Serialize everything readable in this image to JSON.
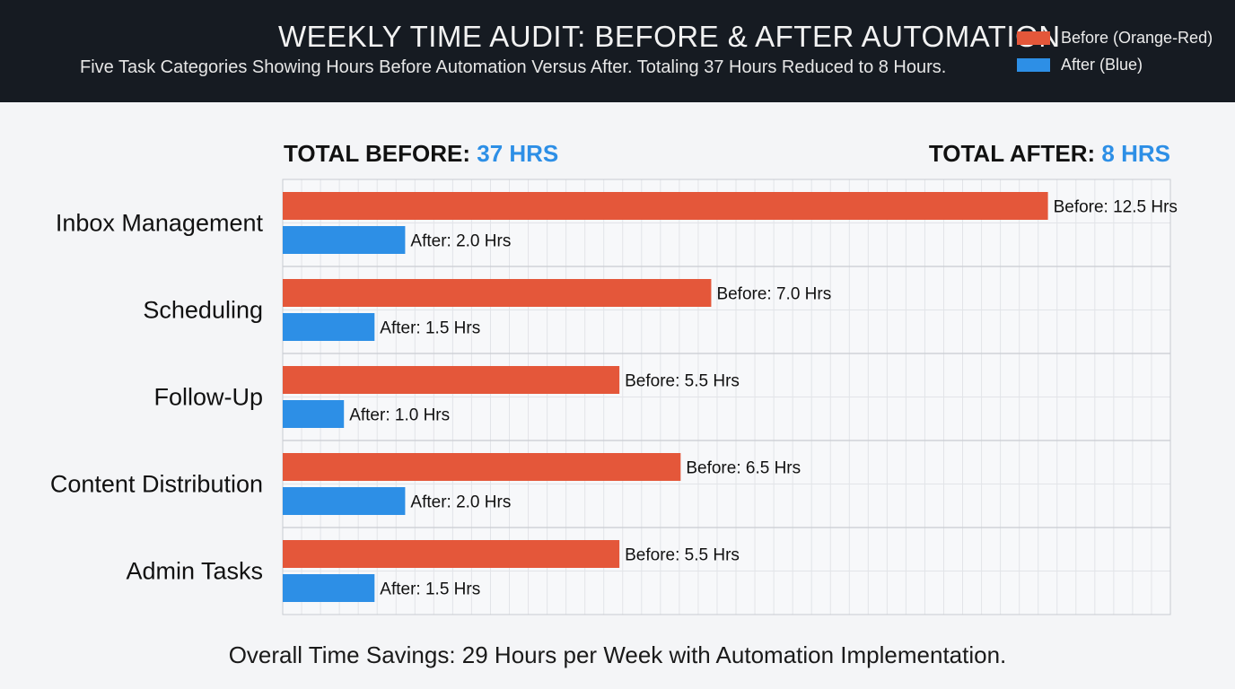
{
  "header": {
    "title": "WEEKLY TIME AUDIT: BEFORE & AFTER AUTOMATION",
    "subtitle": "Five Task Categories Showing Hours Before Automation Versus After. Totaling 37 Hours Reduced to 8 Hours."
  },
  "legend": {
    "before_label": "Before (Orange-Red)",
    "after_label": "After (Blue)"
  },
  "totals": {
    "before_label": "TOTAL BEFORE:",
    "before_value": "37 HRS",
    "after_label": "TOTAL AFTER:",
    "after_value": "8 HRS"
  },
  "colors": {
    "before": "#e4573a",
    "after": "#2d8fe6",
    "accent_text": "#2d8fe6",
    "header_bg": "#161b22"
  },
  "chart_data": {
    "type": "bar",
    "orientation": "horizontal",
    "categories": [
      "Inbox Management",
      "Scheduling",
      "Follow-Up",
      "Content Distribution",
      "Admin Tasks"
    ],
    "series": [
      {
        "name": "Before (Orange-Red)",
        "values": [
          12.5,
          7.0,
          5.5,
          6.5,
          5.5
        ],
        "labels": [
          "Before: 12.5 Hrs",
          "Before: 7.0 Hrs",
          "Before: 5.5 Hrs",
          "Before: 6.5 Hrs",
          "Before: 5.5 Hrs"
        ]
      },
      {
        "name": "After (Blue)",
        "values": [
          2.0,
          1.5,
          1.0,
          2.0,
          1.5
        ],
        "labels": [
          "After: 2.0 Hrs",
          "After: 1.5 Hrs",
          "After: 1.0 Hrs",
          "After: 2.0 Hrs",
          "After: 1.5 Hrs"
        ]
      }
    ],
    "xlim": [
      0,
      14.5
    ],
    "grid": true,
    "legend_position": "top-right"
  },
  "footer": {
    "text": "Overall Time Savings: 29 Hours per Week with Automation Implementation."
  }
}
